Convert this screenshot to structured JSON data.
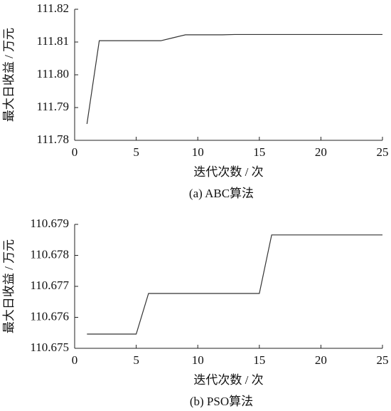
{
  "chart_data": [
    {
      "type": "line",
      "caption": "(a)  ABC算法",
      "xlabel": "迭代次数 / 次",
      "ylabel": "最大日收益 / 万元",
      "x": [
        1,
        2,
        3,
        4,
        5,
        6,
        7,
        8,
        9,
        10,
        11,
        12,
        13,
        14,
        15,
        16,
        17,
        18,
        19,
        20,
        21,
        22,
        23,
        24,
        25
      ],
      "series": [
        {
          "color": "#333333",
          "values": [
            111.785,
            111.8104,
            111.8104,
            111.8104,
            111.8104,
            111.8104,
            111.8104,
            111.8113,
            111.8122,
            111.8122,
            111.8122,
            111.8122,
            111.8123,
            111.8123,
            111.8123,
            111.8123,
            111.8123,
            111.8123,
            111.8123,
            111.8123,
            111.8123,
            111.8123,
            111.8123,
            111.8123,
            111.8123
          ]
        }
      ],
      "xlim": [
        0,
        25
      ],
      "xticks": [
        0,
        5,
        10,
        15,
        20,
        25
      ],
      "ylim": [
        111.78,
        111.82
      ],
      "yticks": [
        111.78,
        111.79,
        {
          "value": 111.8,
          "label": "111.80"
        },
        111.81,
        111.82
      ]
    },
    {
      "type": "line",
      "caption": "(b)  PSO算法",
      "xlabel": "迭代次数 / 次",
      "ylabel": "最大日收益 / 万元",
      "x": [
        1,
        2,
        3,
        4,
        5,
        6,
        7,
        8,
        9,
        10,
        11,
        12,
        13,
        14,
        15,
        16,
        17,
        18,
        19,
        20,
        21,
        22,
        23,
        24,
        25
      ],
      "series": [
        {
          "color": "#333333",
          "values": [
            110.67546,
            110.67546,
            110.67546,
            110.67546,
            110.67546,
            110.67677,
            110.67677,
            110.67677,
            110.67677,
            110.67677,
            110.67677,
            110.67677,
            110.67677,
            110.67677,
            110.67677,
            110.67866,
            110.67866,
            110.67866,
            110.67866,
            110.67866,
            110.67866,
            110.67866,
            110.67866,
            110.67866,
            110.67866
          ]
        }
      ],
      "xlim": [
        0,
        25
      ],
      "xticks": [
        0,
        5,
        10,
        15,
        20,
        25
      ],
      "ylim": [
        110.675,
        110.679
      ],
      "yticks": [
        110.675,
        110.676,
        110.677,
        110.678,
        110.679
      ]
    }
  ]
}
